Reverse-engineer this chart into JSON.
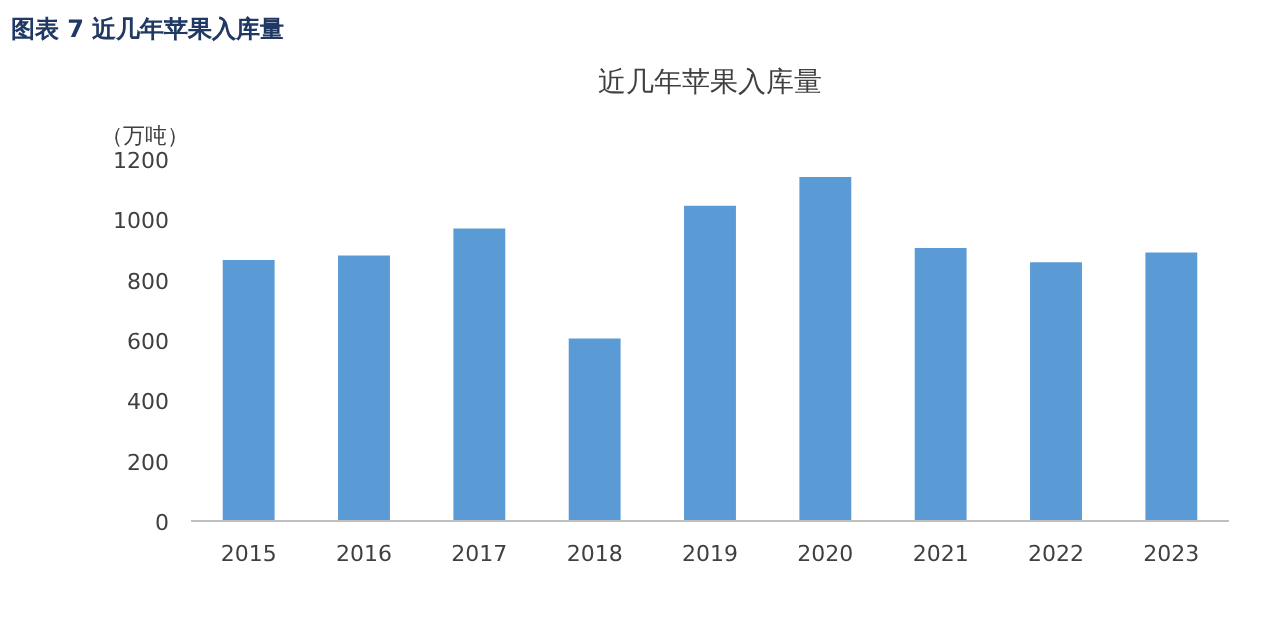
{
  "chart_data": {
    "type": "bar",
    "title": "近几年苹果入库量",
    "ylabel": "（万吨）",
    "annotations": [
      "图表 7 近几年苹果入库量"
    ],
    "categories": [
      "2015",
      "2016",
      "2017",
      "2018",
      "2019",
      "2020",
      "2021",
      "2022",
      "2023"
    ],
    "values": [
      865,
      880,
      970,
      605,
      1045,
      1140,
      905,
      858,
      890
    ],
    "color": "#5b9bd5",
    "ylim": [
      0,
      1200
    ],
    "yticks": [
      0,
      200,
      400,
      600,
      800,
      1000,
      1200
    ],
    "grid": false
  }
}
